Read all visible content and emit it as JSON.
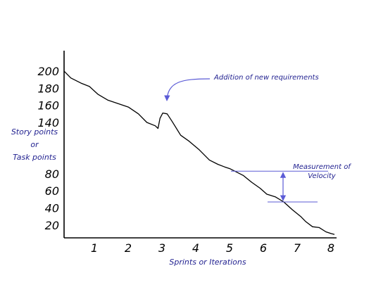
{
  "chart_data": {
    "type": "line",
    "title": "",
    "xlabel": "Sprints or Iterations",
    "ylabel_lines": [
      "Story points",
      "or",
      "Task points"
    ],
    "x_ticks": [
      "1",
      "2",
      "3",
      "4",
      "5",
      "6",
      "7",
      "8"
    ],
    "y_ticks": [
      "20",
      "40",
      "60",
      "80",
      "140",
      "160",
      "180",
      "200"
    ],
    "xlim": [
      0,
      8
    ],
    "ylim": [
      5,
      205
    ],
    "grid": false,
    "series": [
      {
        "points": [
          [
            0.0,
            200
          ],
          [
            0.2,
            192
          ],
          [
            0.5,
            186
          ],
          [
            0.75,
            182
          ],
          [
            1.0,
            173
          ],
          [
            1.3,
            166
          ],
          [
            1.6,
            162
          ],
          [
            1.9,
            158
          ],
          [
            2.2,
            150
          ],
          [
            2.45,
            140
          ],
          [
            2.7,
            136
          ],
          [
            2.78,
            133
          ],
          [
            2.84,
            145
          ],
          [
            2.92,
            151
          ],
          [
            3.05,
            150
          ],
          [
            3.2,
            141
          ],
          [
            3.45,
            125
          ],
          [
            3.7,
            118
          ],
          [
            4.0,
            108
          ],
          [
            4.3,
            96
          ],
          [
            4.55,
            91
          ],
          [
            4.75,
            88
          ],
          [
            4.9,
            86
          ],
          [
            5.05,
            83
          ],
          [
            5.3,
            78
          ],
          [
            5.55,
            70
          ],
          [
            5.8,
            63
          ],
          [
            6.0,
            56
          ],
          [
            6.25,
            53
          ],
          [
            6.5,
            47
          ],
          [
            6.75,
            38
          ],
          [
            7.0,
            30
          ],
          [
            7.15,
            24
          ],
          [
            7.35,
            18
          ],
          [
            7.55,
            17
          ],
          [
            7.75,
            12
          ],
          [
            7.9,
            10
          ],
          [
            8.0,
            9
          ]
        ]
      }
    ],
    "annotations": [
      {
        "text": "Addition of new requirements",
        "x": 2.92,
        "y": 151
      },
      {
        "text_lines": [
          "Measurement of",
          "Velocity"
        ],
        "y_from": 83,
        "y_to": 47
      }
    ]
  }
}
